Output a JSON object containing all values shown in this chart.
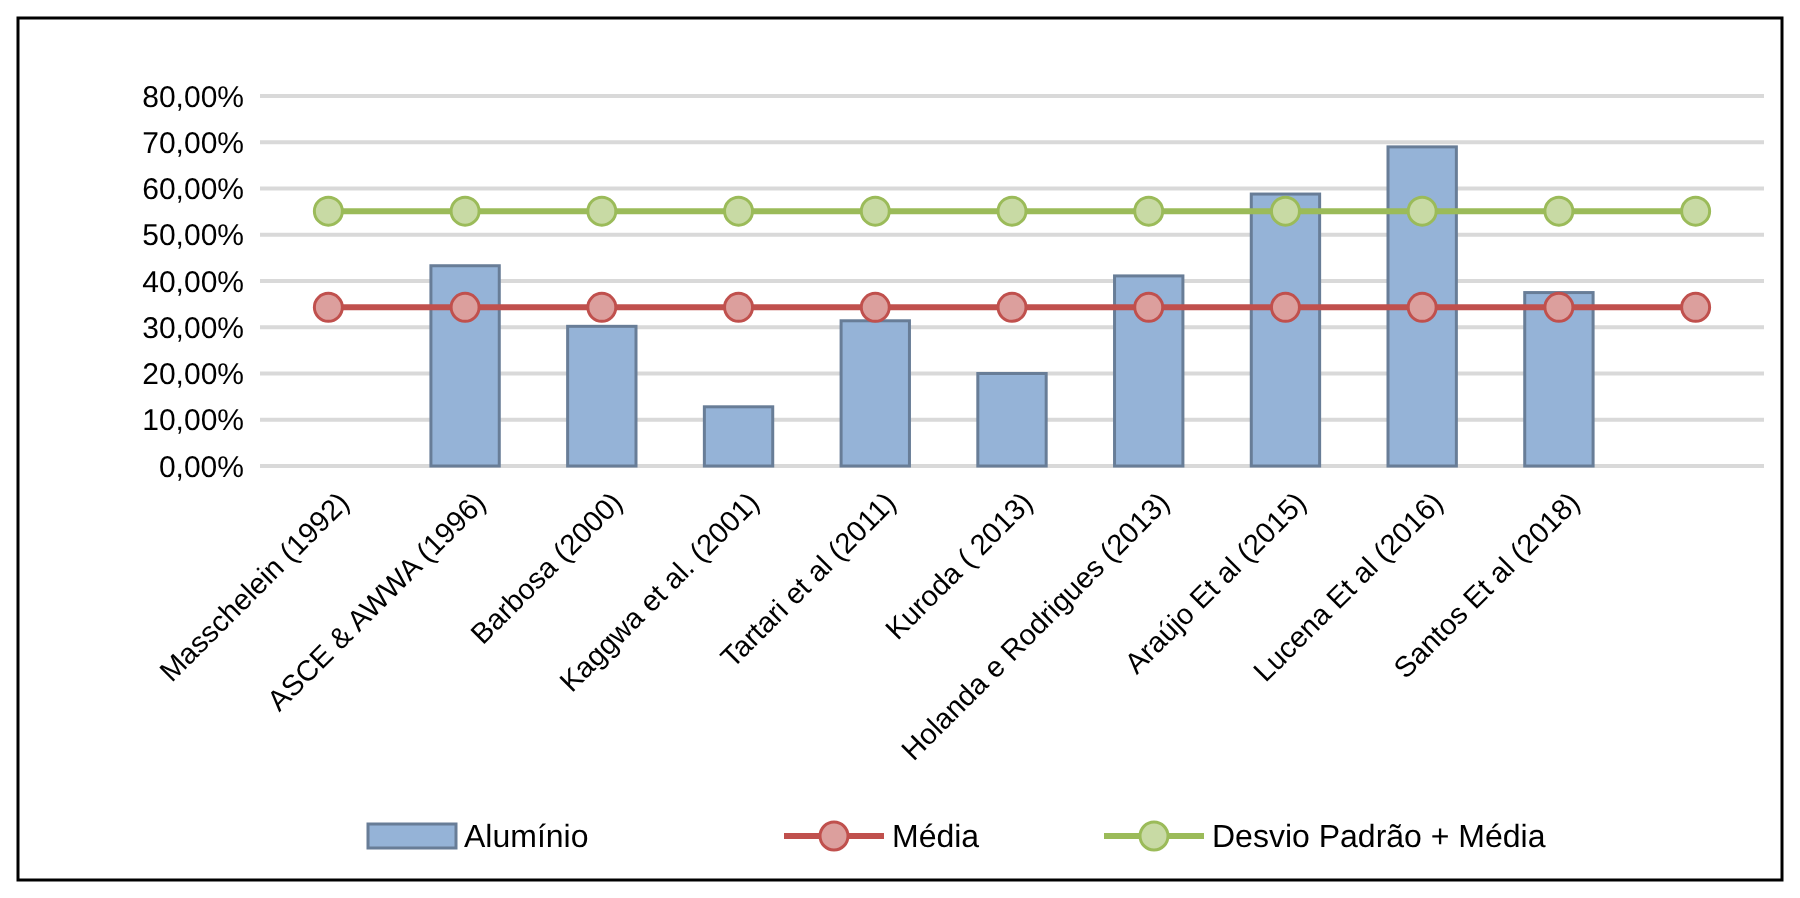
{
  "chart_data": {
    "type": "bar",
    "categories": [
      "Masschelein (1992)",
      "ASCE & AWWA (1996)",
      "Barbosa (2000)",
      "Kaggwa et al. (2001)",
      "Tartari et al (2011)",
      "Kuroda ( 2013)",
      "Holanda e Rodrigues (2013)",
      "Araújo Et al (2015)",
      "Lucena Et al (2016)",
      "Santos Et al (2018)",
      null
    ],
    "series": [
      {
        "name": "Alumínio",
        "color": "#95b3d7",
        "values": [
          null,
          43.3,
          30.2,
          12.8,
          31.4,
          20.0,
          41.1,
          58.8,
          69.0,
          37.5,
          null
        ]
      },
      {
        "name": "Média",
        "type": "line",
        "color": "#c0504d",
        "values": [
          34.3,
          34.3,
          34.3,
          34.3,
          34.3,
          34.3,
          34.3,
          34.3,
          34.3,
          34.3,
          34.3
        ]
      },
      {
        "name": "Desvio Padrão + Média",
        "type": "line",
        "color": "#9bbb59",
        "values": [
          55.1,
          55.1,
          55.1,
          55.1,
          55.1,
          55.1,
          55.1,
          55.1,
          55.1,
          55.1,
          55.1
        ]
      }
    ],
    "ylim": [
      0,
      80
    ],
    "yticks": [
      {
        "value": 0,
        "label": "0,00%"
      },
      {
        "value": 10,
        "label": "10,00%"
      },
      {
        "value": 20,
        "label": "20,00%"
      },
      {
        "value": 30,
        "label": "30,00%"
      },
      {
        "value": 40,
        "label": "40,00%"
      },
      {
        "value": 50,
        "label": "50,00%"
      },
      {
        "value": 60,
        "label": "60,00%"
      },
      {
        "value": 70,
        "label": "70,00%"
      },
      {
        "value": 80,
        "label": "80,00%"
      }
    ],
    "grid": "y",
    "legend": "bottom",
    "marker": "circle",
    "line_style": "solid"
  }
}
